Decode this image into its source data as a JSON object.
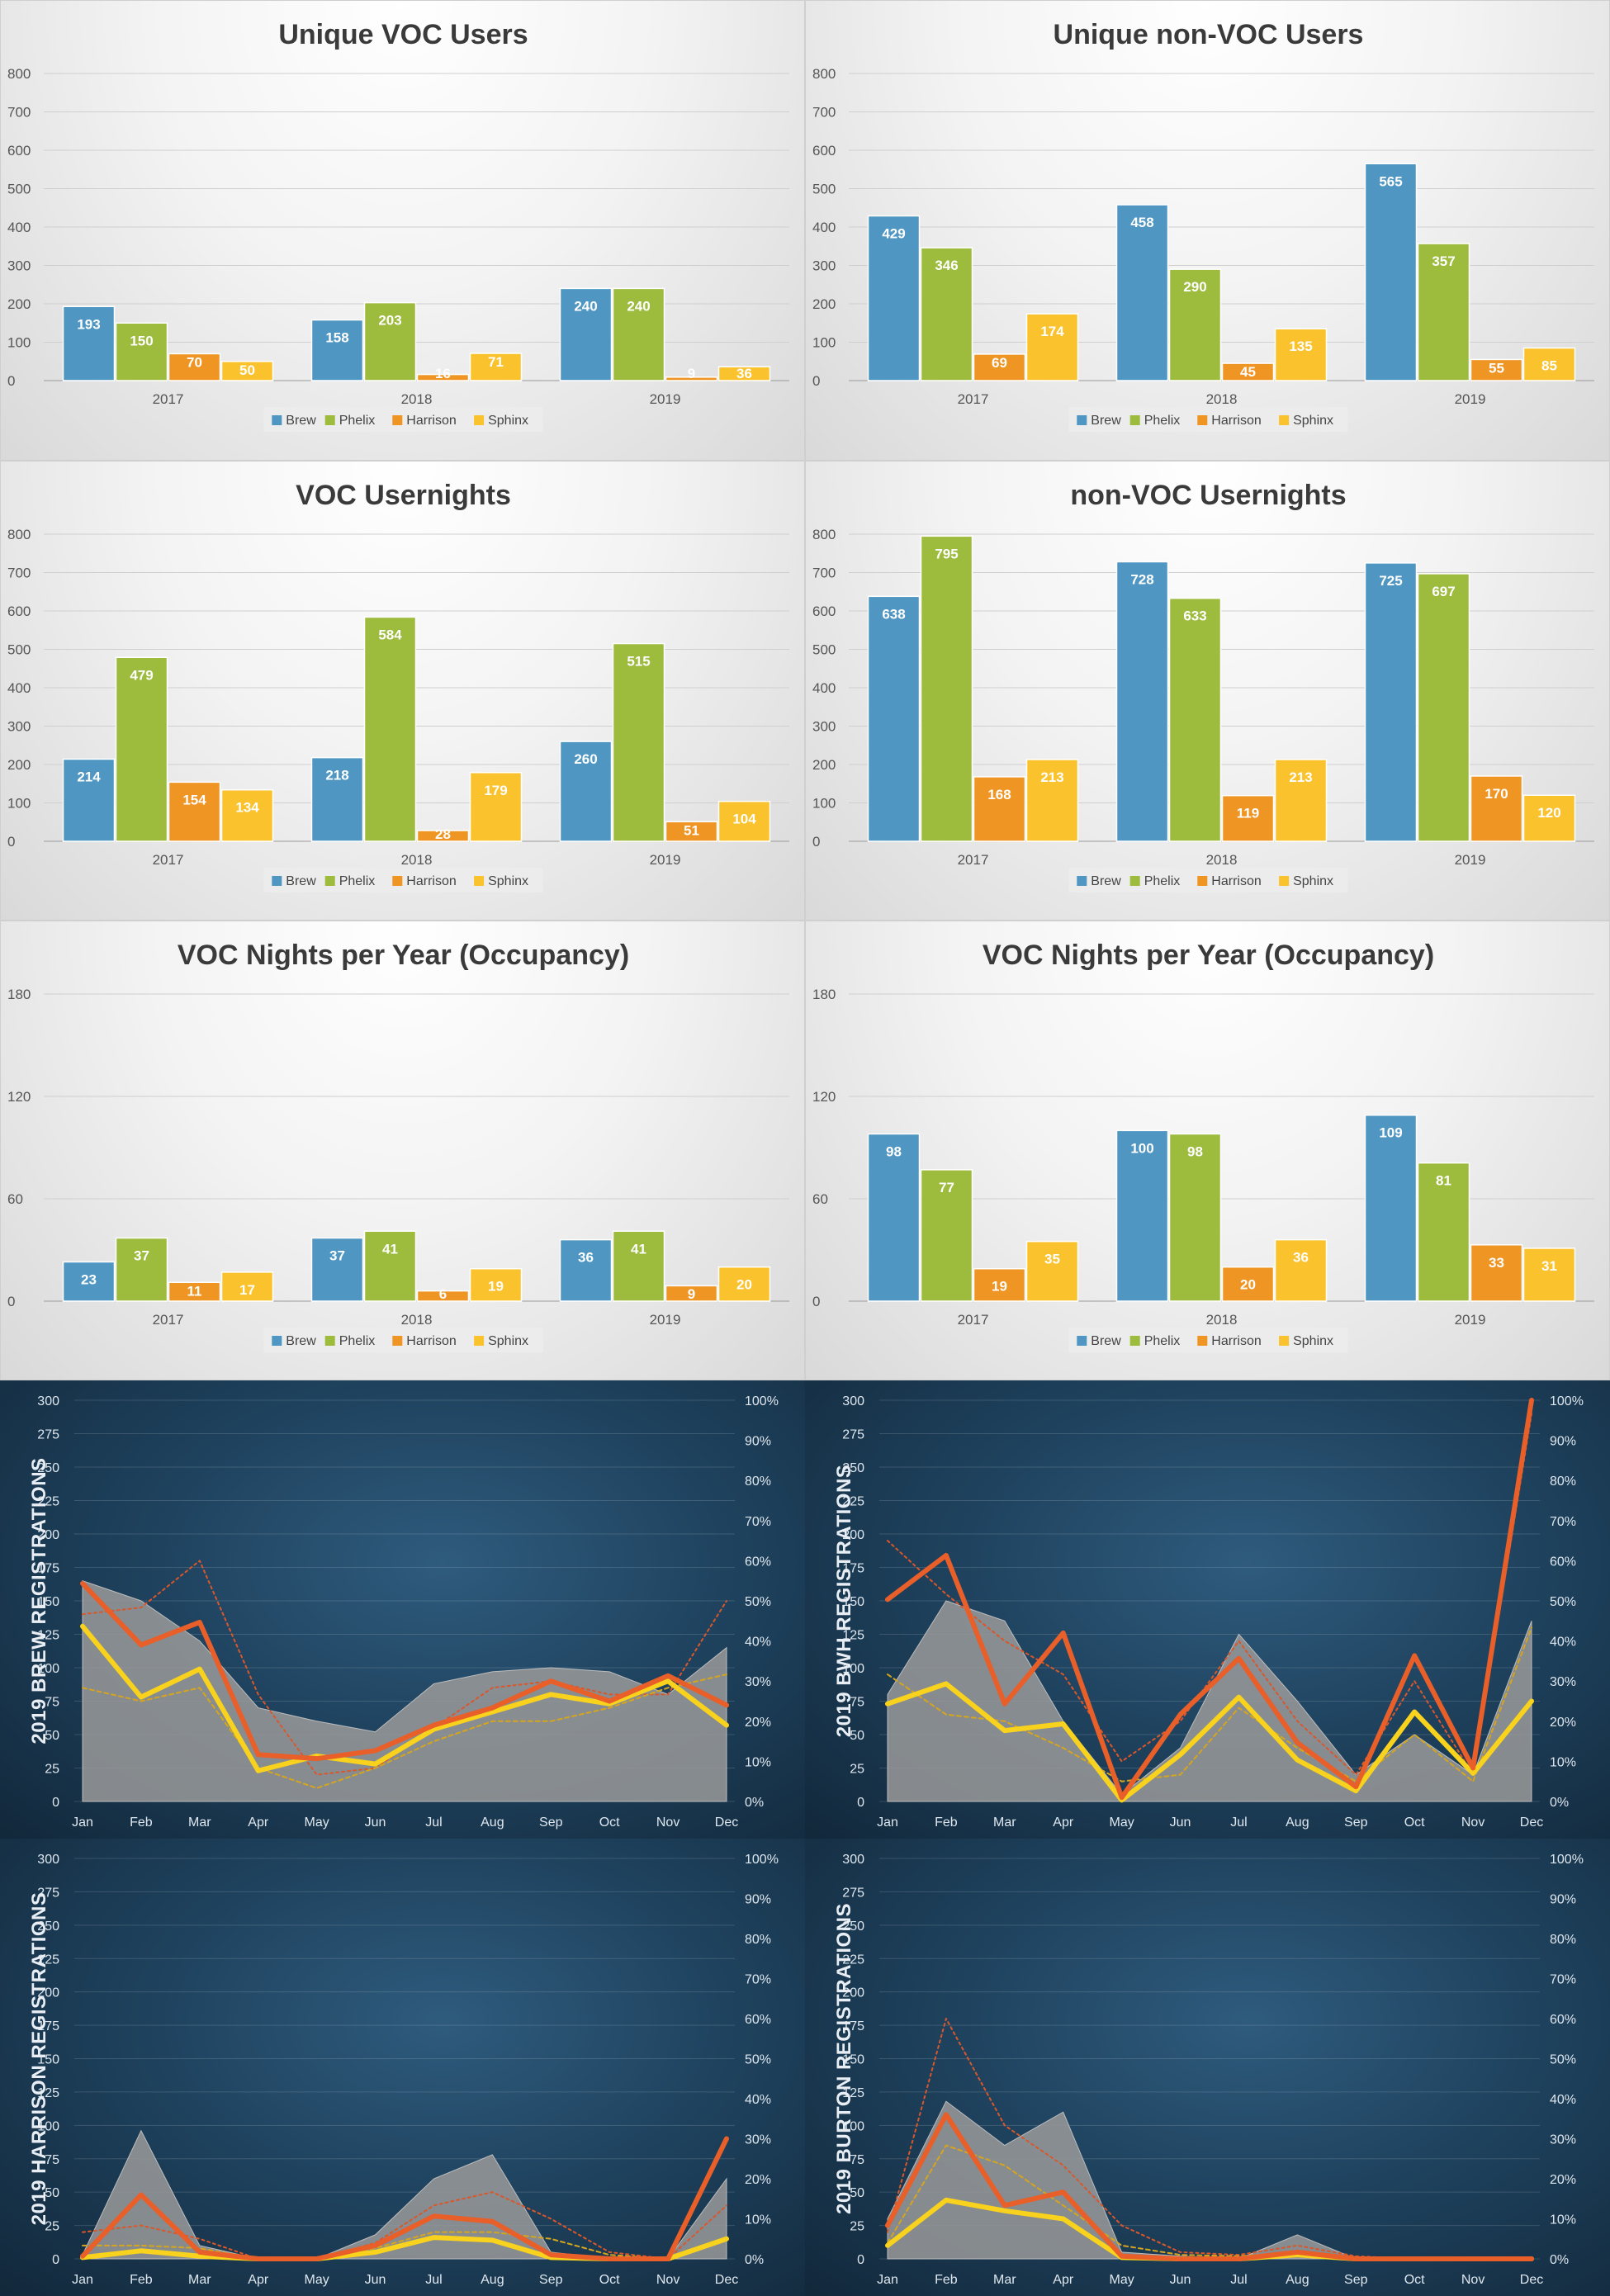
{
  "colors": {
    "Brew": "#4f96c2",
    "Phelix": "#9dbb3d",
    "Harrison": "#ef9524",
    "Sphinx": "#fac22d",
    "orange_line": "#e85f2a",
    "yellow_line": "#f8d21c",
    "area": "#9a9a9a"
  },
  "chart_data": [
    {
      "type": "bar",
      "title": "Unique VOC Users",
      "categories": [
        "2017",
        "2018",
        "2019"
      ],
      "ylim": [
        0,
        800
      ],
      "yticks": [
        0,
        100,
        200,
        300,
        400,
        500,
        600,
        700,
        800
      ],
      "series": [
        {
          "name": "Brew",
          "values": [
            193,
            158,
            240
          ]
        },
        {
          "name": "Phelix",
          "values": [
            150,
            203,
            240
          ]
        },
        {
          "name": "Harrison",
          "values": [
            70,
            16,
            9
          ]
        },
        {
          "name": "Sphinx",
          "values": [
            50,
            71,
            36
          ]
        }
      ]
    },
    {
      "type": "bar",
      "title": "Unique non-VOC Users",
      "categories": [
        "2017",
        "2018",
        "2019"
      ],
      "ylim": [
        0,
        800
      ],
      "yticks": [
        0,
        100,
        200,
        300,
        400,
        500,
        600,
        700,
        800
      ],
      "series": [
        {
          "name": "Brew",
          "values": [
            429,
            458,
            565
          ]
        },
        {
          "name": "Phelix",
          "values": [
            346,
            290,
            357
          ]
        },
        {
          "name": "Harrison",
          "values": [
            69,
            45,
            55
          ]
        },
        {
          "name": "Sphinx",
          "values": [
            174,
            135,
            85
          ]
        }
      ]
    },
    {
      "type": "bar",
      "title": "VOC Usernights",
      "categories": [
        "2017",
        "2018",
        "2019"
      ],
      "ylim": [
        0,
        800
      ],
      "yticks": [
        0,
        100,
        200,
        300,
        400,
        500,
        600,
        700,
        800
      ],
      "series": [
        {
          "name": "Brew",
          "values": [
            214,
            218,
            260
          ]
        },
        {
          "name": "Phelix",
          "values": [
            479,
            584,
            515
          ]
        },
        {
          "name": "Harrison",
          "values": [
            154,
            28,
            51
          ]
        },
        {
          "name": "Sphinx",
          "values": [
            134,
            179,
            104
          ]
        }
      ]
    },
    {
      "type": "bar",
      "title": "non-VOC Usernights",
      "categories": [
        "2017",
        "2018",
        "2019"
      ],
      "ylim": [
        0,
        800
      ],
      "yticks": [
        0,
        100,
        200,
        300,
        400,
        500,
        600,
        700,
        800
      ],
      "series": [
        {
          "name": "Brew",
          "values": [
            638,
            728,
            725
          ]
        },
        {
          "name": "Phelix",
          "values": [
            795,
            633,
            697
          ]
        },
        {
          "name": "Harrison",
          "values": [
            168,
            119,
            170
          ]
        },
        {
          "name": "Sphinx",
          "values": [
            213,
            213,
            120
          ]
        }
      ]
    },
    {
      "type": "bar",
      "title": "VOC Nights per Year (Occupancy)",
      "categories": [
        "2017",
        "2018",
        "2019"
      ],
      "ylim": [
        0,
        180
      ],
      "yticks": [
        0,
        60,
        120,
        180
      ],
      "series": [
        {
          "name": "Brew",
          "values": [
            23,
            37,
            36
          ]
        },
        {
          "name": "Phelix",
          "values": [
            37,
            41,
            41
          ]
        },
        {
          "name": "Harrison",
          "values": [
            11,
            6,
            9
          ]
        },
        {
          "name": "Sphinx",
          "values": [
            17,
            19,
            20
          ]
        }
      ]
    },
    {
      "type": "bar",
      "title": "VOC Nights per Year (Occupancy)",
      "categories": [
        "2017",
        "2018",
        "2019"
      ],
      "ylim": [
        0,
        180
      ],
      "yticks": [
        0,
        60,
        120,
        180
      ],
      "series": [
        {
          "name": "Brew",
          "values": [
            98,
            100,
            109
          ]
        },
        {
          "name": "Phelix",
          "values": [
            77,
            98,
            81
          ]
        },
        {
          "name": "Harrison",
          "values": [
            19,
            20,
            33
          ]
        },
        {
          "name": "Sphinx",
          "values": [
            35,
            36,
            31
          ]
        }
      ]
    },
    {
      "type": "area",
      "ylabel": "2019 BREW REGISTRATIONS",
      "x": [
        "Jan",
        "Feb",
        "Mar",
        "Apr",
        "May",
        "Jun",
        "Jul",
        "Aug",
        "Sep",
        "Oct",
        "Nov",
        "Dec"
      ],
      "ylim": [
        0,
        300
      ],
      "yticks": [
        0,
        25,
        50,
        75,
        100,
        125,
        150,
        175,
        200,
        225,
        250,
        275,
        300
      ],
      "y2lim": [
        0,
        1
      ],
      "y2ticks": [
        "0%",
        "10%",
        "20%",
        "30%",
        "40%",
        "50%",
        "60%",
        "70%",
        "80%",
        "90%",
        "100%"
      ],
      "area": [
        165,
        150,
        120,
        70,
        60,
        52,
        88,
        97,
        100,
        97,
        80,
        115
      ],
      "orange": [
        163,
        117,
        134,
        35,
        32,
        38,
        57,
        70,
        90,
        75,
        94,
        72
      ],
      "yellow": [
        131,
        78,
        99,
        23,
        34,
        28,
        54,
        67,
        80,
        73,
        90,
        57
      ],
      "orange_dotted": [
        140,
        145,
        180,
        80,
        20,
        25,
        55,
        85,
        90,
        80,
        80,
        150
      ],
      "yellow_dotted": [
        85,
        75,
        85,
        25,
        10,
        25,
        45,
        60,
        60,
        70,
        85,
        95
      ]
    },
    {
      "type": "area",
      "ylabel": "2019 BWH REGISTRATIONS",
      "x": [
        "Jan",
        "Feb",
        "Mar",
        "Apr",
        "May",
        "Jun",
        "Jul",
        "Aug",
        "Sep",
        "Oct",
        "Nov",
        "Dec"
      ],
      "ylim": [
        0,
        300
      ],
      "yticks": [
        0,
        25,
        50,
        75,
        100,
        125,
        150,
        175,
        200,
        225,
        250,
        275,
        300
      ],
      "y2lim": [
        0,
        1
      ],
      "y2ticks": [
        "0%",
        "10%",
        "20%",
        "30%",
        "40%",
        "50%",
        "60%",
        "70%",
        "80%",
        "90%",
        "100%"
      ],
      "area": [
        80,
        150,
        135,
        60,
        5,
        40,
        125,
        75,
        20,
        50,
        20,
        135
      ],
      "orange": [
        151,
        184,
        73,
        126,
        3,
        65,
        107,
        44,
        11,
        109,
        25,
        300
      ],
      "yellow": [
        73,
        88,
        53,
        58,
        1,
        35,
        78,
        31,
        8,
        67,
        21,
        75
      ],
      "orange_dotted": [
        195,
        155,
        120,
        95,
        30,
        60,
        120,
        60,
        20,
        90,
        20,
        290
      ],
      "yellow_dotted": [
        95,
        65,
        60,
        40,
        15,
        20,
        70,
        40,
        15,
        50,
        15,
        130
      ]
    },
    {
      "type": "area",
      "ylabel": "2019 HARRISON REGISTRATIONS",
      "x": [
        "Jan",
        "Feb",
        "Mar",
        "Apr",
        "May",
        "Jun",
        "Jul",
        "Aug",
        "Sep",
        "Oct",
        "Nov",
        "Dec"
      ],
      "ylim": [
        0,
        300
      ],
      "yticks": [
        0,
        25,
        50,
        75,
        100,
        125,
        150,
        175,
        200,
        225,
        250,
        275,
        300
      ],
      "y2lim": [
        0,
        1
      ],
      "y2ticks": [
        "0%",
        "10%",
        "20%",
        "30%",
        "40%",
        "50%",
        "60%",
        "70%",
        "80%",
        "90%",
        "100%"
      ],
      "area": [
        3,
        96,
        10,
        0,
        0,
        18,
        60,
        78,
        5,
        0,
        0,
        60
      ],
      "orange": [
        2,
        48,
        5,
        0,
        0,
        10,
        32,
        28,
        3,
        0,
        0,
        90
      ],
      "yellow": [
        1,
        6,
        2,
        0,
        0,
        5,
        16,
        14,
        1,
        0,
        0,
        15
      ],
      "orange_dotted": [
        20,
        25,
        15,
        0,
        0,
        12,
        40,
        50,
        30,
        5,
        0,
        40
      ],
      "yellow_dotted": [
        10,
        10,
        8,
        0,
        0,
        8,
        20,
        20,
        15,
        3,
        0,
        15
      ]
    },
    {
      "type": "area",
      "ylabel": "2019 BURTON REGISTRATIONS",
      "x": [
        "Jan",
        "Feb",
        "Mar",
        "Apr",
        "May",
        "Jun",
        "Jul",
        "Aug",
        "Sep",
        "Oct",
        "Nov",
        "Dec"
      ],
      "ylim": [
        0,
        300
      ],
      "yticks": [
        0,
        25,
        50,
        75,
        100,
        125,
        150,
        175,
        200,
        225,
        250,
        275,
        300
      ],
      "y2lim": [
        0,
        1
      ],
      "y2ticks": [
        "0%",
        "10%",
        "20%",
        "30%",
        "40%",
        "50%",
        "60%",
        "70%",
        "80%",
        "90%",
        "100%"
      ],
      "area": [
        30,
        118,
        85,
        110,
        5,
        2,
        0,
        18,
        0,
        0,
        0,
        0
      ],
      "orange": [
        25,
        108,
        40,
        50,
        2,
        0,
        0,
        5,
        0,
        0,
        0,
        0
      ],
      "yellow": [
        10,
        44,
        36,
        30,
        1,
        0,
        0,
        3,
        0,
        0,
        0,
        0
      ],
      "orange_dotted": [
        20,
        180,
        100,
        70,
        25,
        5,
        3,
        10,
        2,
        0,
        0,
        0
      ],
      "yellow_dotted": [
        12,
        85,
        70,
        40,
        10,
        3,
        2,
        5,
        1,
        0,
        0,
        0
      ]
    }
  ]
}
